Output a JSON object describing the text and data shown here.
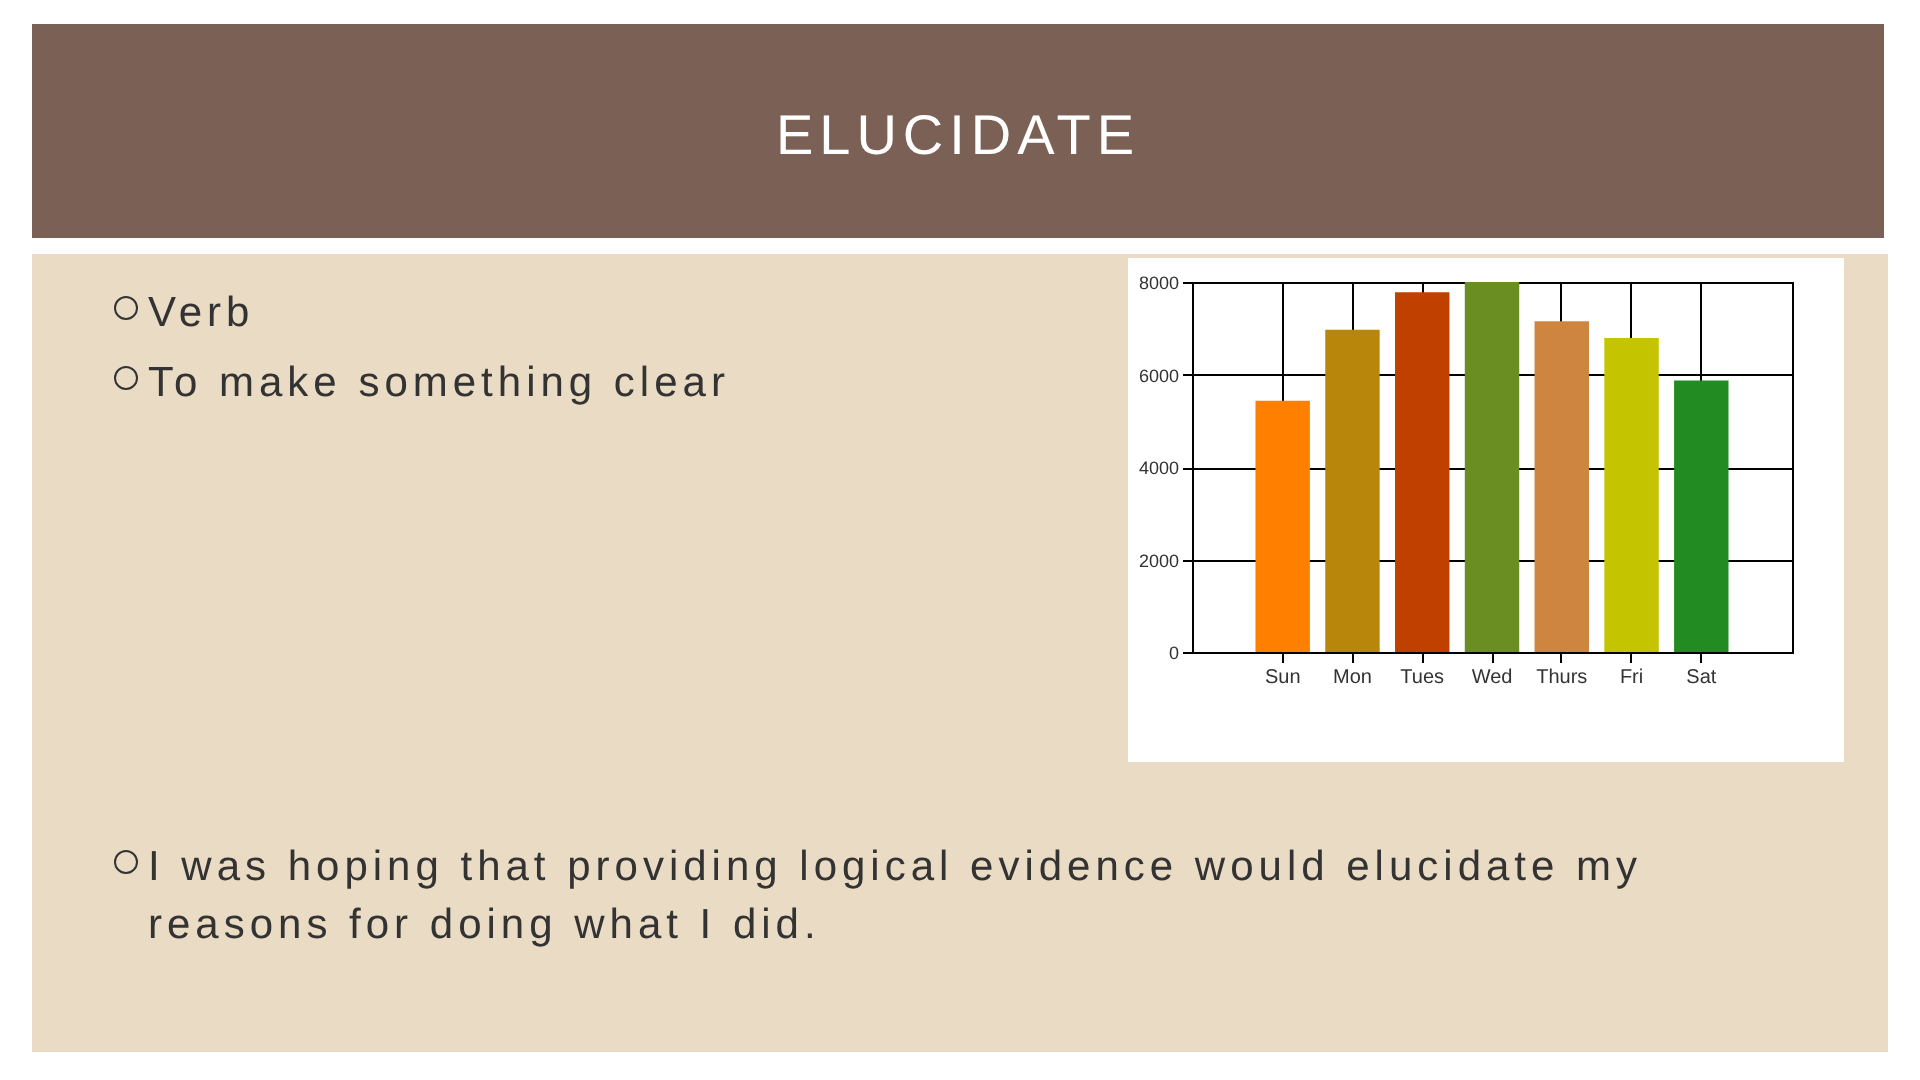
{
  "chart_data": {
    "type": "bar",
    "title": "ELUCIDATE",
    "annotations": [
      "Verb",
      "To make something clear",
      "I was hoping that providing logical evidence would elucidate my reasons for doing what I did."
    ],
    "categories": [
      "Sun",
      "Mon",
      "Tues",
      "Wed",
      "Thurs",
      "Fri",
      "Sat"
    ],
    "values": [
      5430,
      6970,
      7780,
      8000,
      7150,
      6790,
      5870
    ],
    "colors": [
      "#ff7f00",
      "#b8860b",
      "#c04000",
      "#6b8e23",
      "#cd853f",
      "#c4c400",
      "#228b22"
    ],
    "ylim": [
      0,
      8000
    ],
    "yticks": [
      0,
      2000,
      4000,
      6000,
      8000
    ],
    "grid": true
  }
}
